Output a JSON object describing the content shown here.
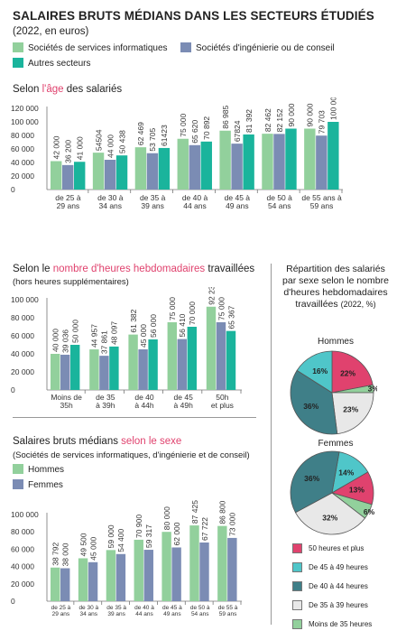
{
  "title": "SALAIRES BRUTS MÉDIANS DANS LES SECTEURS ÉTUDIÉS",
  "subtitle": "(2022, en euros)",
  "colors": {
    "green": "#92d09c",
    "blue": "#7b8cb4",
    "teal": "#1ab49c",
    "pink": "#e0426e",
    "cyan": "#4fc6c9",
    "darkteal": "#3f7f88",
    "light": "#e8e8e8",
    "lightgreen": "#92d09c"
  },
  "legend": [
    "Sociétés de services informatiques",
    "Sociétés d'ingénierie ou de conseil",
    "Autres secteurs"
  ],
  "sections": {
    "age": {
      "prefix": "Selon ",
      "highlight": "l'âge",
      "suffix": " des salariés"
    },
    "hours": {
      "prefix": "Selon le ",
      "highlight": "nombre d'heures hebdomadaires",
      "suffix": " travaillées",
      "note": "(hors heures supplémentaires)"
    },
    "sex": {
      "prefix": "Salaires bruts médians ",
      "highlight": "selon le sexe",
      "suffix": "",
      "note": "(Sociétés de services informatiques, d'ingénierie et de conseil)"
    }
  },
  "sidebar": {
    "title_lines": [
      "Répartition des salariés",
      "par sexe selon le nombre",
      "d'heures hebdomadaires",
      "travaillées"
    ],
    "unit": "(2022, %)",
    "pie_men": "Hommes",
    "pie_women": "Femmes",
    "pie_legend": [
      "50 heures et plus",
      "De 45 à 49 heures",
      "De 40 à 44 heures",
      "De 35 à 39 heures",
      "Moins de 35 heures"
    ]
  },
  "chart_data": [
    {
      "type": "bar",
      "title": "Selon l'âge des salariés",
      "categories": [
        [
          "de 25 à",
          "29 ans"
        ],
        [
          "de 30 à",
          "34 ans"
        ],
        [
          "de 35 à",
          "39 ans"
        ],
        [
          "de 40 à",
          "44 ans"
        ],
        [
          "de 45 à",
          "49 ans"
        ],
        [
          "de 50 à",
          "54 ans"
        ],
        [
          "de 55 ans à",
          "59 ans"
        ]
      ],
      "yticks": [
        "0",
        "20 000",
        "40 000",
        "60 000",
        "80 000",
        "100 000",
        "120 000"
      ],
      "ylim": [
        0,
        120000
      ],
      "series": [
        {
          "name": "Sociétés de services informatiques",
          "values": [
            42000,
            54504,
            62469,
            75000,
            86985,
            82462,
            90000
          ],
          "labels": [
            "42 000",
            "54504",
            "62 469",
            "75 000",
            "86 985",
            "82 462",
            "90 000"
          ]
        },
        {
          "name": "Sociétés d'ingénierie ou de conseil",
          "values": [
            36200,
            44000,
            53705,
            65620,
            67824,
            82152,
            79703
          ],
          "labels": [
            "36 200",
            "44 000",
            "53 705",
            "65 620",
            "67824",
            "82 152",
            "79 703"
          ]
        },
        {
          "name": "Autres secteurs",
          "values": [
            41000,
            50438,
            61423,
            70892,
            81392,
            90000,
            100000
          ],
          "labels": [
            "41 000",
            "50 438",
            "61423",
            "70 892",
            "81 392",
            "90 000",
            "100 000"
          ]
        }
      ]
    },
    {
      "type": "bar",
      "title": "Selon le nombre d'heures hebdomadaires travaillées",
      "categories": [
        [
          "Moins de",
          "35h"
        ],
        [
          "de 35",
          "à 39h"
        ],
        [
          "de 40",
          "à 44h"
        ],
        [
          "de 45",
          "à 49h"
        ],
        [
          "50h",
          "et plus"
        ]
      ],
      "yticks": [
        "0",
        "20 000",
        "40 000",
        "60 000",
        "80 000",
        "100 000"
      ],
      "ylim": [
        0,
        100000
      ],
      "series": [
        {
          "name": "Sociétés de services informatiques",
          "values": [
            40000,
            44957,
            61382,
            75000,
            92231
          ],
          "labels": [
            "40 000",
            "44 957",
            "61 382",
            "75 000",
            "92 231"
          ]
        },
        {
          "name": "Sociétés d'ingénierie ou de conseil",
          "values": [
            39036,
            37861,
            45000,
            56410,
            75000
          ],
          "labels": [
            "39 036",
            "37 861",
            "45 000",
            "56 410",
            "75 000"
          ]
        },
        {
          "name": "Autres secteurs",
          "values": [
            50000,
            48097,
            56000,
            70000,
            65367
          ],
          "labels": [
            "50 000",
            "48 097",
            "56 000",
            "70 000",
            "65 367"
          ]
        }
      ]
    },
    {
      "type": "bar",
      "title": "Salaires bruts médians selon le sexe",
      "categories": [
        [
          "de 25 à",
          "29 ans"
        ],
        [
          "de 30 à",
          "34 ans"
        ],
        [
          "de 35 à",
          "39 ans"
        ],
        [
          "de 40 à",
          "44 ans"
        ],
        [
          "de 45 à",
          "49 ans"
        ],
        [
          "de 50 à",
          "54 ans"
        ],
        [
          "de 55 à",
          "59 ans"
        ]
      ],
      "yticks": [
        "0",
        "20 000",
        "40 000",
        "60 000",
        "80 000",
        "100 000"
      ],
      "ylim": [
        0,
        100000
      ],
      "series": [
        {
          "name": "Hommes",
          "values": [
            38792,
            49500,
            59000,
            70900,
            80000,
            87425,
            86800
          ],
          "labels": [
            "38 792",
            "49 500",
            "59 000",
            "70 900",
            "80 000",
            "87 425",
            "86 800"
          ]
        },
        {
          "name": "Femmes",
          "values": [
            38000,
            45000,
            54400,
            59317,
            62000,
            67722,
            73000
          ],
          "labels": [
            "38 000",
            "45 000",
            "54 400",
            "59 317",
            "62 000",
            "67 722",
            "73 000"
          ]
        }
      ]
    },
    {
      "type": "pie",
      "title": "Hommes",
      "categories": [
        "50 heures et plus",
        "De 45 à 49 heures",
        "De 40 à 44 heures",
        "De 35 à 39 heures",
        "Moins de 35 heures"
      ],
      "values": [
        22,
        16,
        36,
        23,
        3
      ],
      "labels": [
        "22%",
        "16%",
        "36%",
        "23%",
        "3%"
      ]
    },
    {
      "type": "pie",
      "title": "Femmes",
      "categories": [
        "50 heures et plus",
        "De 45 à 49 heures",
        "De 40 à 44 heures",
        "De 35 à 39 heures",
        "Moins de 35 heures"
      ],
      "values": [
        13,
        14,
        36,
        32,
        6
      ],
      "labels": [
        "13%",
        "14%",
        "36%",
        "32%",
        "6%"
      ]
    }
  ]
}
